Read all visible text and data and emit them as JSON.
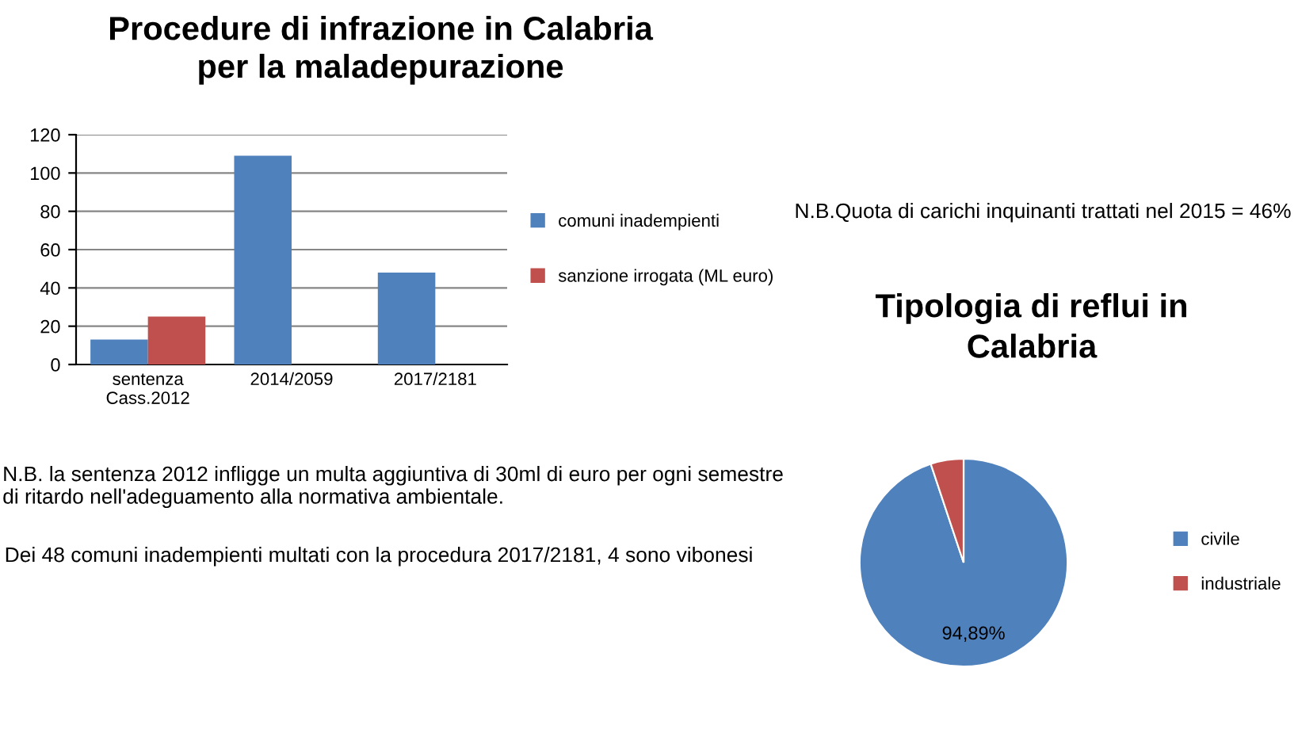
{
  "chart_data": [
    {
      "type": "bar",
      "title": "Procedure di infrazione in Calabria\nper la maladepurazione",
      "categories": [
        "sentenza Cass.2012",
        "2014/2059",
        "2017/2181"
      ],
      "series": [
        {
          "name": "comuni inadempienti",
          "color": "#4f81bd",
          "values": [
            13,
            109,
            48
          ]
        },
        {
          "name": "sanzione irrogata (ML euro)",
          "color": "#c0504d",
          "values": [
            25,
            null,
            null
          ]
        }
      ],
      "ylim": [
        0,
        120
      ],
      "yticks": [
        0,
        20,
        40,
        60,
        80,
        100,
        120
      ],
      "grid": "y",
      "legend": "right",
      "annotations": [
        "N.B. la sentenza 2012 infligge un multa aggiuntiva di 30ml di euro per ogni semestre di ritardo nell'adeguamento alla normativa ambientale.",
        "Dei 48 comuni inadempienti multati con la procedura 2017/2181, 4 sono vibonesi"
      ]
    },
    {
      "type": "pie",
      "title": "Tipologia di reflui in\nCalabria",
      "categories": [
        "civile",
        "industriale"
      ],
      "values": [
        94.89,
        5.11
      ],
      "colors": [
        "#4f81bd",
        "#c0504d"
      ],
      "value_labels": [
        "94,89%",
        null
      ],
      "legend": "right",
      "annotations": [
        "N.B.Quota di carichi inquinanti trattati nel 2015 = 46%"
      ]
    }
  ]
}
